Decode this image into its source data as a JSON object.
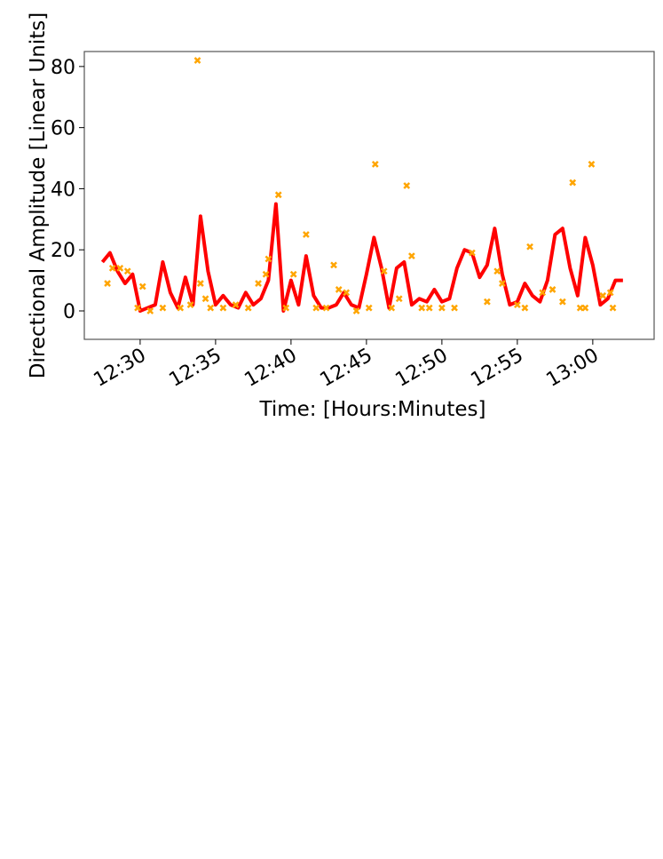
{
  "chart_data": {
    "type": "line",
    "xlabel": "Time: [Hours:Minutes]",
    "ylabel": "Directional Amplitude [Linear Units]",
    "xlim": [
      "12:26:18",
      "13:04:04"
    ],
    "xticks": [
      "12:30",
      "12:35",
      "12:40",
      "12:45",
      "12:50",
      "12:55",
      "13:00"
    ],
    "ylim": [
      -9.3,
      84.9
    ],
    "yticks": [
      0,
      20,
      40,
      60,
      80
    ],
    "series": [
      {
        "type": "line",
        "color": "#ff0000",
        "x": [
          "12:27:30",
          "12:28:00",
          "12:28:30",
          "12:29:00",
          "12:29:30",
          "12:30:00",
          "12:30:30",
          "12:31:00",
          "12:31:30",
          "12:32:00",
          "12:32:30",
          "12:33:00",
          "12:33:30",
          "12:34:00",
          "12:34:30",
          "12:35:00",
          "12:35:30",
          "12:36:00",
          "12:36:30",
          "12:37:00",
          "12:37:30",
          "12:38:00",
          "12:38:30",
          "12:39:00",
          "12:39:30",
          "12:40:00",
          "12:40:30",
          "12:41:00",
          "12:41:30",
          "12:42:00",
          "12:42:30",
          "12:43:00",
          "12:43:30",
          "12:44:00",
          "12:44:30",
          "12:45:00",
          "12:45:30",
          "12:46:00",
          "12:46:30",
          "12:47:00",
          "12:47:30",
          "12:48:00",
          "12:48:30",
          "12:49:00",
          "12:49:30",
          "12:50:00",
          "12:50:30",
          "12:51:00",
          "12:51:30",
          "12:52:00",
          "12:52:30",
          "12:53:00",
          "12:53:30",
          "12:54:00",
          "12:54:30",
          "12:55:00",
          "12:55:30",
          "12:56:00",
          "12:56:30",
          "12:57:00",
          "12:57:30",
          "12:58:00",
          "12:58:30",
          "12:59:00",
          "12:59:30",
          "13:00:00",
          "13:00:30",
          "13:01:00",
          "13:01:30",
          "13:02:00"
        ],
        "values": [
          16,
          19,
          13,
          9,
          12,
          0,
          1,
          2,
          16,
          6,
          1,
          11,
          2,
          31,
          13,
          2,
          5,
          2,
          1,
          6,
          2,
          4,
          10,
          35,
          0,
          10,
          2,
          18,
          5,
          1,
          1,
          2,
          6,
          2,
          1,
          12,
          24,
          14,
          1,
          14,
          16,
          2,
          4,
          3,
          7,
          3,
          4,
          14,
          20,
          19,
          11,
          15,
          27,
          12,
          2,
          3,
          9,
          5,
          3,
          10,
          25,
          27,
          14,
          5,
          24,
          15,
          2,
          4,
          10,
          10
        ]
      },
      {
        "type": "scatter",
        "color": "#ffa500",
        "x": [
          "12:27:50",
          "12:28:10",
          "12:28:40",
          "12:29:10",
          "12:29:50",
          "12:30:10",
          "12:30:40",
          "12:31:30",
          "12:32:40",
          "12:33:20",
          "12:33:48",
          "12:34:00",
          "12:34:20",
          "12:34:40",
          "12:35:30",
          "12:36:20",
          "12:37:10",
          "12:37:50",
          "12:38:20",
          "12:38:30",
          "12:39:10",
          "12:39:40",
          "12:40:10",
          "12:41:00",
          "12:41:40",
          "12:42:20",
          "12:42:50",
          "12:43:10",
          "12:43:40",
          "12:44:20",
          "12:45:10",
          "12:45:35",
          "12:46:10",
          "12:46:40",
          "12:47:10",
          "12:47:40",
          "12:48:00",
          "12:48:40",
          "12:49:10",
          "12:50:00",
          "12:50:50",
          "12:52:00",
          "12:53:00",
          "12:53:40",
          "12:54:00",
          "12:55:00",
          "12:55:30",
          "12:55:50",
          "12:56:40",
          "12:57:20",
          "12:58:00",
          "12:58:40",
          "12:59:10",
          "12:59:30",
          "12:59:55",
          "13:00:40",
          "13:01:10",
          "13:01:20"
        ],
        "values": [
          9,
          14,
          14,
          13,
          1,
          8,
          0,
          1,
          1,
          2,
          82,
          9,
          4,
          1,
          1,
          2,
          1,
          9,
          12,
          17,
          38,
          1,
          12,
          25,
          1,
          1,
          15,
          7,
          6,
          0,
          1,
          48,
          13,
          1,
          4,
          41,
          18,
          1,
          1,
          1,
          1,
          19,
          3,
          13,
          9,
          2,
          1,
          21,
          6,
          7,
          3,
          42,
          1,
          1,
          48,
          5,
          6,
          1
        ]
      }
    ]
  }
}
